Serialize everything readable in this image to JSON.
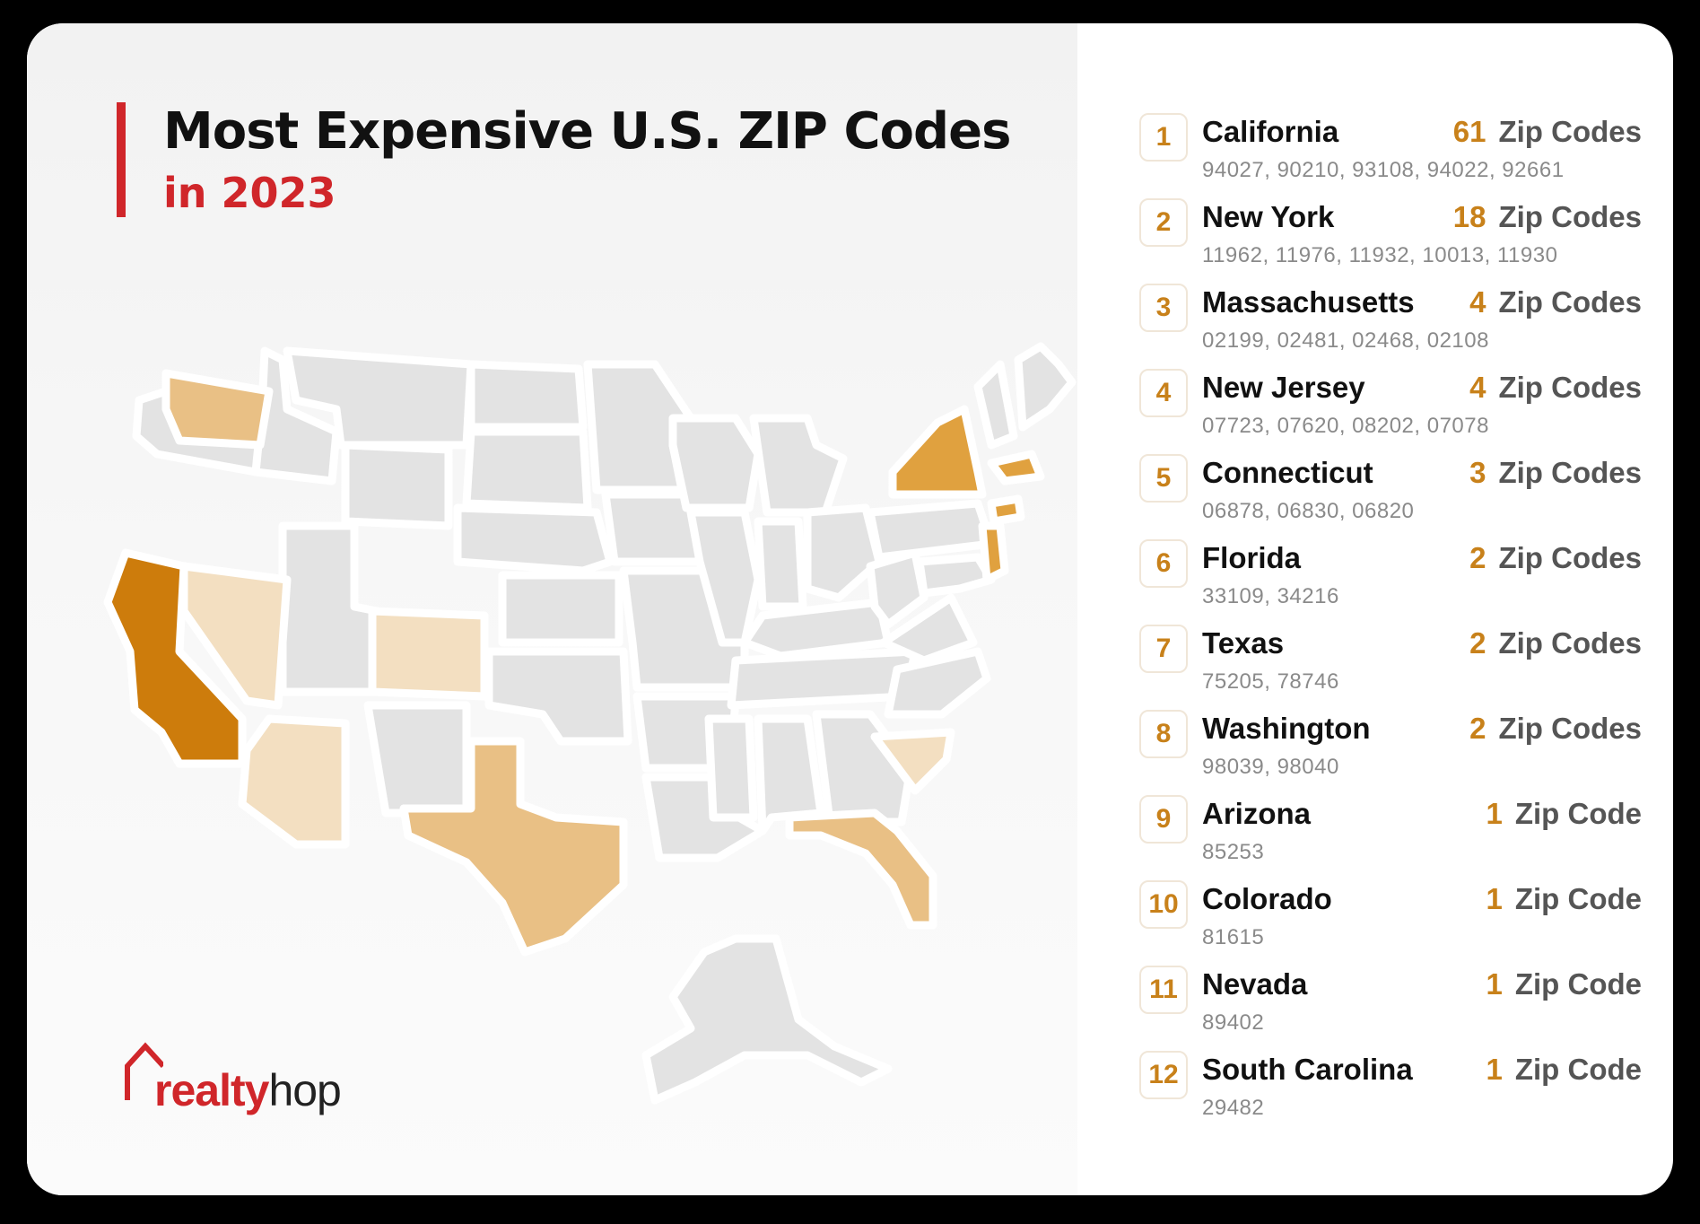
{
  "title": "Most Expensive U.S. ZIP Codes",
  "subtitle": "in 2023",
  "logo": {
    "part1": "realty",
    "part2": "hop"
  },
  "colors": {
    "accent_red": "#d0262a",
    "rank_orange": "#c8811a",
    "tier_top": "#cd7c0c",
    "tier_high": "#e0a13f",
    "tier_mid": "#e9c085",
    "tier_low": "#f3dfc1",
    "no_data": "#e3e3e3"
  },
  "states": [
    {
      "rank": "1",
      "name": "California",
      "count": "61",
      "unit": "Zip Codes",
      "zips": "94027,  90210,  93108,  94022,  92661"
    },
    {
      "rank": "2",
      "name": "New York",
      "count": "18",
      "unit": "Zip Codes",
      "zips": "11962,  11976,  11932,  10013,  11930"
    },
    {
      "rank": "3",
      "name": "Massachusetts",
      "count": "4",
      "unit": "Zip Codes",
      "zips": "02199,  02481,  02468,  02108"
    },
    {
      "rank": "4",
      "name": "New Jersey",
      "count": "4",
      "unit": "Zip Codes",
      "zips": "07723,  07620,  08202,  07078"
    },
    {
      "rank": "5",
      "name": "Connecticut",
      "count": "3",
      "unit": "Zip Codes",
      "zips": "06878,  06830,  06820"
    },
    {
      "rank": "6",
      "name": "Florida",
      "count": "2",
      "unit": "Zip Codes",
      "zips": "33109,  34216"
    },
    {
      "rank": "7",
      "name": "Texas",
      "count": "2",
      "unit": "Zip Codes",
      "zips": "75205,  78746"
    },
    {
      "rank": "8",
      "name": "Washington",
      "count": "2",
      "unit": "Zip Codes",
      "zips": "98039,  98040"
    },
    {
      "rank": "9",
      "name": "Arizona",
      "count": "1",
      "unit": "Zip Code",
      "zips": "85253"
    },
    {
      "rank": "10",
      "name": "Colorado",
      "count": "1",
      "unit": "Zip Code",
      "zips": "81615"
    },
    {
      "rank": "11",
      "name": "Nevada",
      "count": "1",
      "unit": "Zip Code",
      "zips": "89402"
    },
    {
      "rank": "12",
      "name": "South Carolina",
      "count": "1",
      "unit": "Zip Code",
      "zips": "29482"
    }
  ]
}
